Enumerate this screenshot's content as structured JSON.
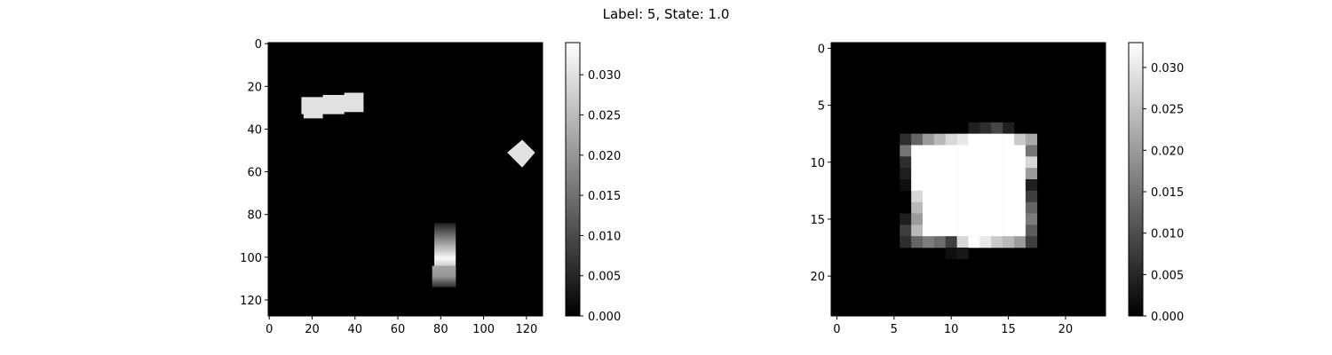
{
  "title": "Label: 5, State: 1.0",
  "colormap": {
    "low": "#000000",
    "high": "#ffffff",
    "axis_color": "#000000"
  },
  "chart_data": [
    {
      "type": "heatmap",
      "name": "left-image",
      "title": "",
      "xlabel": "",
      "ylabel": "",
      "xlim": [
        -0.5,
        127.5
      ],
      "ylim": [
        127.5,
        -0.5
      ],
      "x_ticks": [
        0,
        20,
        40,
        60,
        80,
        100,
        120
      ],
      "y_ticks": [
        0,
        20,
        40,
        60,
        80,
        100,
        120
      ],
      "value_range": [
        0,
        0.034
      ],
      "colorbar_ticks": [
        "0.000",
        "0.005",
        "0.010",
        "0.015",
        "0.020",
        "0.025",
        "0.030"
      ],
      "colorbar_values": [
        0,
        0.005,
        0.01,
        0.015,
        0.02,
        0.025,
        0.03
      ],
      "shapes": [
        {
          "kind": "polygon",
          "value": 0.03,
          "points": [
            [
              15,
              25
            ],
            [
              25,
              25
            ],
            [
              25,
              24
            ],
            [
              35,
              24
            ],
            [
              35,
              23
            ],
            [
              44,
              23
            ],
            [
              44,
              32
            ],
            [
              35,
              32
            ],
            [
              35,
              33
            ],
            [
              25,
              33
            ],
            [
              25,
              35
            ],
            [
              16,
              35
            ],
            [
              16,
              33
            ],
            [
              15,
              33
            ]
          ]
        },
        {
          "kind": "polygon",
          "value": 0.03,
          "points": [
            [
              118,
              45
            ],
            [
              124,
              51
            ],
            [
              118,
              58
            ],
            [
              111,
              51
            ]
          ]
        },
        {
          "kind": "gradient-rect",
          "x0": 77,
          "x1": 87,
          "y0": 84,
          "y1": 114,
          "stops": [
            [
              0,
              0.004
            ],
            [
              0.25,
              0.018
            ],
            [
              0.55,
              0.033
            ],
            [
              0.75,
              0.024
            ],
            [
              1,
              0.01
            ]
          ]
        },
        {
          "kind": "gradient-rect",
          "x0": 76,
          "x1": 87,
          "y0": 104,
          "y1": 114,
          "stops": [
            [
              0,
              0.022
            ],
            [
              0.5,
              0.02
            ],
            [
              1,
              0.006
            ]
          ]
        }
      ]
    },
    {
      "type": "heatmap",
      "name": "right-image",
      "title": "",
      "xlabel": "",
      "ylabel": "",
      "xlim": [
        -0.5,
        23.5
      ],
      "ylim": [
        23.5,
        -0.5
      ],
      "x_ticks": [
        0,
        5,
        10,
        15,
        20
      ],
      "y_ticks": [
        0,
        5,
        10,
        15,
        20
      ],
      "value_range": [
        0,
        0.033
      ],
      "colorbar_ticks": [
        "0.000",
        "0.005",
        "0.010",
        "0.015",
        "0.020",
        "0.025",
        "0.030"
      ],
      "colorbar_values": [
        0,
        0.005,
        0.01,
        0.015,
        0.02,
        0.025,
        0.03
      ],
      "grid_origin": [
        5,
        6
      ],
      "grid": [
        [
          0,
          0,
          0,
          0,
          0,
          0,
          0,
          0,
          0,
          0,
          0,
          0,
          0,
          0
        ],
        [
          0,
          0,
          0,
          0,
          0,
          0,
          0,
          0.004,
          0.006,
          0.009,
          0.004,
          0,
          0,
          0
        ],
        [
          0,
          0.006,
          0.013,
          0.02,
          0.024,
          0.028,
          0.03,
          0.033,
          0.033,
          0.033,
          0.033,
          0.026,
          0.022,
          0
        ],
        [
          0,
          0.015,
          0.033,
          0.033,
          0.033,
          0.033,
          0.033,
          0.033,
          0.033,
          0.033,
          0.033,
          0.033,
          0.015,
          0
        ],
        [
          0,
          0.006,
          0.033,
          0.033,
          0.033,
          0.033,
          0.033,
          0.033,
          0.033,
          0.033,
          0.033,
          0.033,
          0.028,
          0
        ],
        [
          0,
          0.004,
          0.033,
          0.033,
          0.033,
          0.033,
          0.033,
          0.033,
          0.033,
          0.033,
          0.033,
          0.033,
          0.02,
          0
        ],
        [
          0,
          0.002,
          0.033,
          0.033,
          0.033,
          0.033,
          0.033,
          0.033,
          0.033,
          0.033,
          0.033,
          0.033,
          0.004,
          0
        ],
        [
          0,
          0,
          0.028,
          0.033,
          0.033,
          0.033,
          0.033,
          0.033,
          0.033,
          0.033,
          0.033,
          0.033,
          0.008,
          0
        ],
        [
          0,
          0,
          0.024,
          0.033,
          0.033,
          0.033,
          0.033,
          0.033,
          0.033,
          0.033,
          0.033,
          0.033,
          0.013,
          0
        ],
        [
          0,
          0.004,
          0.02,
          0.033,
          0.033,
          0.033,
          0.033,
          0.033,
          0.033,
          0.033,
          0.033,
          0.033,
          0.016,
          0
        ],
        [
          0,
          0.008,
          0.024,
          0.033,
          0.033,
          0.033,
          0.033,
          0.033,
          0.033,
          0.033,
          0.033,
          0.033,
          0.012,
          0
        ],
        [
          0,
          0.006,
          0.013,
          0.016,
          0.014,
          0.008,
          0.028,
          0.033,
          0.03,
          0.026,
          0.024,
          0.02,
          0.008,
          0
        ],
        [
          0,
          0,
          0,
          0,
          0,
          0.002,
          0.003,
          0,
          0,
          0,
          0,
          0,
          0,
          0
        ],
        [
          0,
          0,
          0,
          0,
          0,
          0,
          0,
          0,
          0,
          0,
          0,
          0,
          0,
          0
        ]
      ]
    }
  ]
}
